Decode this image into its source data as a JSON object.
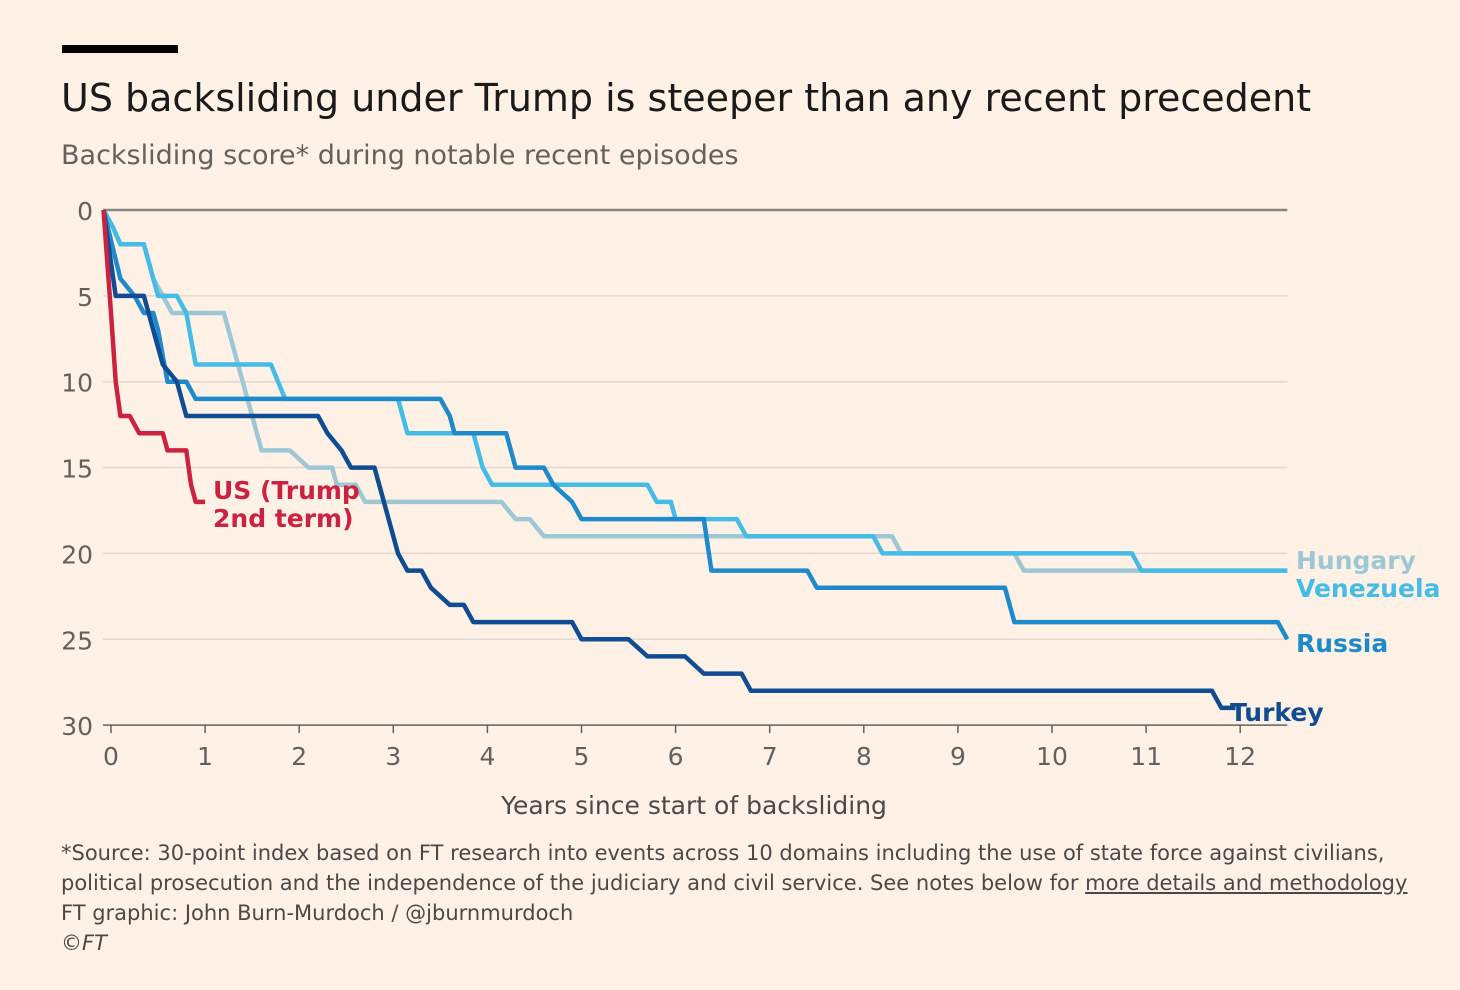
{
  "header": {
    "title": "US backsliding under Trump is steeper than any recent precedent",
    "subtitle": "Backsliding score* during notable recent episodes"
  },
  "footer": {
    "source_text": "*Source: 30-point index based on FT research into events across 10 domains including the use of state force against civilians,",
    "source_text_2": "political prosecution and the independence of the judiciary and civil service. See notes below for ",
    "link_text": "more details and methodology",
    "credit": "FT graphic: John Burn-Murdoch / @jburnmurdoch",
    "copyright": "©FT"
  },
  "chart_data": {
    "type": "line",
    "title": "US backsliding under Trump is steeper than any recent precedent",
    "subtitle": "Backsliding score* during notable recent episodes",
    "xlabel": "Years since start of backsliding",
    "ylabel": "",
    "xlim": [
      0,
      12.5
    ],
    "ylim": [
      0,
      30
    ],
    "y_inverted": true,
    "x_ticks": [
      0,
      1,
      2,
      3,
      4,
      5,
      6,
      7,
      8,
      9,
      10,
      11,
      12
    ],
    "y_ticks": [
      0,
      5,
      10,
      15,
      20,
      25,
      30
    ],
    "grid": true,
    "series": [
      {
        "name": "Hungary",
        "label_lines": [
          "Hungary"
        ],
        "color": "#9EC7D6",
        "points": [
          [
            -0.08,
            0
          ],
          [
            0.02,
            1
          ],
          [
            0.1,
            2
          ],
          [
            0.35,
            2
          ],
          [
            0.45,
            4
          ],
          [
            0.65,
            6
          ],
          [
            1.2,
            6
          ],
          [
            1.3,
            8
          ],
          [
            1.45,
            11
          ],
          [
            1.55,
            13
          ],
          [
            1.6,
            14
          ],
          [
            1.9,
            14
          ],
          [
            2.1,
            15
          ],
          [
            2.35,
            15
          ],
          [
            2.4,
            16
          ],
          [
            2.6,
            16
          ],
          [
            2.7,
            17
          ],
          [
            4.15,
            17
          ],
          [
            4.3,
            18
          ],
          [
            4.45,
            18
          ],
          [
            4.6,
            19
          ],
          [
            8.3,
            19
          ],
          [
            8.4,
            20
          ],
          [
            9.6,
            20
          ],
          [
            9.7,
            21
          ],
          [
            10.8,
            21
          ],
          [
            10.9,
            21
          ],
          [
            12.5,
            21
          ]
        ]
      },
      {
        "name": "Venezuela",
        "label_lines": [
          "Venezuela"
        ],
        "color": "#44BCE6",
        "points": [
          [
            -0.08,
            0
          ],
          [
            0.02,
            1
          ],
          [
            0.1,
            2
          ],
          [
            0.35,
            2
          ],
          [
            0.45,
            4
          ],
          [
            0.5,
            5
          ],
          [
            0.7,
            5
          ],
          [
            0.8,
            6
          ],
          [
            0.9,
            9
          ],
          [
            1.7,
            9
          ],
          [
            1.85,
            11
          ],
          [
            3.05,
            11
          ],
          [
            3.15,
            13
          ],
          [
            3.85,
            13
          ],
          [
            3.95,
            15
          ],
          [
            4.05,
            16
          ],
          [
            5.7,
            16
          ],
          [
            5.8,
            17
          ],
          [
            5.95,
            17
          ],
          [
            6.0,
            18
          ],
          [
            6.65,
            18
          ],
          [
            6.75,
            19
          ],
          [
            8.1,
            19
          ],
          [
            8.2,
            20
          ],
          [
            10.85,
            20
          ],
          [
            10.95,
            21
          ],
          [
            12.5,
            21
          ]
        ]
      },
      {
        "name": "Russia",
        "label_lines": [
          "Russia"
        ],
        "color": "#1F8ACB",
        "points": [
          [
            -0.08,
            0
          ],
          [
            0.1,
            4
          ],
          [
            0.25,
            5
          ],
          [
            0.35,
            6
          ],
          [
            0.45,
            6
          ],
          [
            0.5,
            7
          ],
          [
            0.6,
            10
          ],
          [
            0.8,
            10
          ],
          [
            0.9,
            11
          ],
          [
            3.5,
            11
          ],
          [
            3.6,
            12
          ],
          [
            3.65,
            13
          ],
          [
            4.2,
            13
          ],
          [
            4.3,
            15
          ],
          [
            4.6,
            15
          ],
          [
            4.7,
            16
          ],
          [
            4.9,
            17
          ],
          [
            5.0,
            18
          ],
          [
            6.3,
            18
          ],
          [
            6.38,
            21
          ],
          [
            7.4,
            21
          ],
          [
            7.5,
            22
          ],
          [
            9.5,
            22
          ],
          [
            9.6,
            24
          ],
          [
            12.4,
            24
          ],
          [
            12.5,
            25
          ]
        ]
      },
      {
        "name": "Turkey",
        "label_lines": [
          "Turkey"
        ],
        "color": "#0F4C92",
        "points": [
          [
            -0.08,
            0
          ],
          [
            0.05,
            5
          ],
          [
            0.1,
            5
          ],
          [
            0.35,
            5
          ],
          [
            0.45,
            7
          ],
          [
            0.55,
            9
          ],
          [
            0.7,
            10
          ],
          [
            0.8,
            12
          ],
          [
            2.2,
            12
          ],
          [
            2.3,
            13
          ],
          [
            2.45,
            14
          ],
          [
            2.55,
            15
          ],
          [
            2.8,
            15
          ],
          [
            2.9,
            17
          ],
          [
            3.05,
            20
          ],
          [
            3.15,
            21
          ],
          [
            3.3,
            21
          ],
          [
            3.4,
            22
          ],
          [
            3.6,
            23
          ],
          [
            3.75,
            23
          ],
          [
            3.85,
            24
          ],
          [
            4.9,
            24
          ],
          [
            5.0,
            25
          ],
          [
            5.5,
            25
          ],
          [
            5.6,
            25.5
          ],
          [
            5.7,
            26
          ],
          [
            6.1,
            26
          ],
          [
            6.2,
            26.5
          ],
          [
            6.3,
            27
          ],
          [
            6.7,
            27
          ],
          [
            6.8,
            28
          ],
          [
            11.7,
            28
          ],
          [
            11.8,
            29
          ],
          [
            11.95,
            29
          ]
        ]
      },
      {
        "name": "US (Trump 2nd term)",
        "label_lines": [
          "US (Trump",
          "2nd term)"
        ],
        "color": "#CC2242",
        "points": [
          [
            -0.08,
            0
          ],
          [
            0.0,
            6
          ],
          [
            0.05,
            10
          ],
          [
            0.1,
            12
          ],
          [
            0.2,
            12
          ],
          [
            0.3,
            13
          ],
          [
            0.5,
            13
          ],
          [
            0.55,
            13
          ],
          [
            0.6,
            14
          ],
          [
            0.8,
            14
          ],
          [
            0.85,
            16
          ],
          [
            0.9,
            17
          ],
          [
            1.0,
            17
          ]
        ]
      }
    ]
  }
}
